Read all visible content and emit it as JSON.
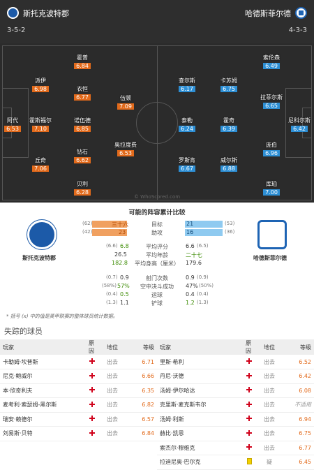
{
  "header": {
    "home_team": "斯托克波特郡",
    "away_team": "哈德斯菲尔德",
    "home_formation": "3-5-2",
    "away_formation": "4-3-3"
  },
  "home_players": [
    {
      "name": "霍普",
      "rating": "6.84"
    },
    {
      "name": "派伊",
      "rating": "6.98"
    },
    {
      "name": "衣恒",
      "rating": "6.77"
    },
    {
      "name": "伍顿",
      "rating": "7.09"
    },
    {
      "name": "阿代",
      "rating": "6.53"
    },
    {
      "name": "霍斯福尔",
      "rating": "7.10"
    },
    {
      "name": "诺伍德",
      "rating": "6.85"
    },
    {
      "name": "奥拉度费",
      "rating": "6.53"
    },
    {
      "name": "丘奇",
      "rating": "7.06"
    },
    {
      "name": "钻石",
      "rating": "6.62"
    },
    {
      "name": "贝利",
      "rating": "6.28"
    }
  ],
  "away_players": [
    {
      "name": "索伦森",
      "rating": "6.49"
    },
    {
      "name": "查尔斯",
      "rating": "6.17"
    },
    {
      "name": "卡苏姆",
      "rating": "6.75"
    },
    {
      "name": "拉菲尔斯",
      "rating": "6.65"
    },
    {
      "name": "泰勒",
      "rating": "6.24"
    },
    {
      "name": "霍奇",
      "rating": "6.39"
    },
    {
      "name": "尼科尔斯",
      "rating": "6.42"
    },
    {
      "name": "庞伯",
      "rating": "6.96"
    },
    {
      "name": "罗斯肯",
      "rating": "6.67"
    },
    {
      "name": "威尔斯",
      "rating": "6.88"
    },
    {
      "name": "库珀",
      "rating": "7.00"
    }
  ],
  "watermark": "© WhoScored.com",
  "comparison": {
    "title": "可能的阵容累计比较",
    "rows": [
      {
        "label": "目标",
        "home_sub": "(62)",
        "home": "三十六",
        "away": "21",
        "away_sub": "(53)"
      },
      {
        "label": "助攻",
        "home_sub": "(42)",
        "home": "23",
        "away": "16",
        "away_sub": "(36)"
      },
      {
        "label": "平均评分",
        "home_sub": "(6.6)",
        "home": "6.8",
        "away": "6.6",
        "away_sub": "(6.5)"
      },
      {
        "label": "平均年龄",
        "home_sub": "",
        "home": "26.5",
        "away": "二十七",
        "away_sub": ""
      },
      {
        "label": "平均身高（厘米）",
        "home_sub": "",
        "home": "182.8",
        "away": "179.6",
        "away_sub": ""
      },
      {
        "label": "射门次数",
        "home_sub": "(0.7)",
        "home": "0.9",
        "away": "0.9",
        "away_sub": "(0.9)"
      },
      {
        "label": "空中决斗成功",
        "home_sub": "(58%)",
        "home": "57%",
        "away": "47%",
        "away_sub": "(50%)"
      },
      {
        "label": "运球",
        "home_sub": "(0.4)",
        "home": "0.5",
        "away": "0.4",
        "away_sub": "(0.4)"
      },
      {
        "label": "铲球",
        "home_sub": "(1.3)",
        "home": "1.1",
        "away": "1.2",
        "away_sub": "(1.3)"
      }
    ],
    "footnote": "* 括号 (x) 中的值是英甲联赛的整体球员统计数据。"
  },
  "missing": {
    "title": "失踪的球员",
    "headers": {
      "player": "玩家",
      "reason": "原因",
      "position": "地位",
      "rating": "等级"
    },
    "left": [
      {
        "player": "卡勒姆·坎普斯",
        "pos": "出去",
        "rating": "6.71"
      },
      {
        "player": "尼克·鲍威尔",
        "pos": "出去",
        "rating": "6.66"
      },
      {
        "player": "本·欣奇利夫",
        "pos": "出去",
        "rating": "6.35"
      },
      {
        "player": "麦考利·索瑟姆-黑尔斯",
        "pos": "出去",
        "rating": "6.82"
      },
      {
        "player": "瑞安·赖德尔",
        "pos": "出去",
        "rating": "6.57"
      },
      {
        "player": "刘易斯·贝特",
        "pos": "出去",
        "rating": "6.84"
      }
    ],
    "right": [
      {
        "player": "里斯·希利",
        "pos": "出去",
        "rating": "6.52",
        "reason": "injury"
      },
      {
        "player": "丹尼·沃德",
        "pos": "出去",
        "rating": "6.42",
        "reason": "injury"
      },
      {
        "player": "汤姆·伊尔哈达",
        "pos": "出去",
        "rating": "6.08",
        "reason": "injury"
      },
      {
        "player": "克里斯·麦克斯韦尔",
        "pos": "出去",
        "rating": "不适用",
        "reason": "injury"
      },
      {
        "player": "汤姆·利斯",
        "pos": "出去",
        "rating": "6.94",
        "reason": "injury"
      },
      {
        "player": "赫比·凯恩",
        "pos": "出去",
        "rating": "6.75",
        "reason": "injury"
      },
      {
        "player": "索杰尔·穆维克",
        "pos": "出去",
        "rating": "6.77",
        "reason": "injury"
      },
      {
        "player": "拉迪尼奥·巴尔克",
        "pos": "疑",
        "rating": "6.45",
        "reason": "doubt"
      }
    ]
  }
}
